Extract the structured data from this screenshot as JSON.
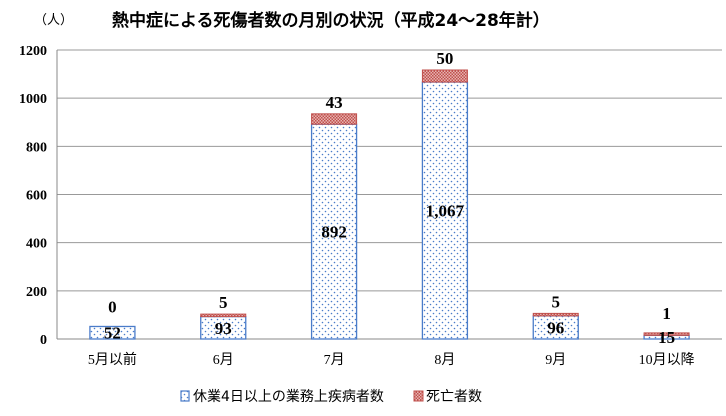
{
  "chart_data": {
    "type": "bar",
    "stacked": true,
    "title": "熱中症による死傷者数の月別の状況（平成24〜28年計）",
    "ylabel": "（人）",
    "xlabel": "",
    "ylim": [
      0,
      1200
    ],
    "yticks": [
      0,
      200,
      400,
      600,
      800,
      1000,
      1200
    ],
    "grid": true,
    "legend_position": "bottom",
    "categories": [
      "5月以前",
      "6月",
      "7月",
      "8月",
      "9月",
      "10月以降"
    ],
    "series": [
      {
        "name": "休業4日以上の業務上疾病者数",
        "values": [
          52,
          93,
          892,
          1067,
          96,
          15
        ],
        "labels": [
          "52",
          "93",
          "892",
          "1,067",
          "96",
          "15"
        ],
        "color": "#4a7cc9",
        "pattern": "dots"
      },
      {
        "name": "死亡者数",
        "values": [
          0,
          5,
          43,
          50,
          5,
          1
        ],
        "labels": [
          "0",
          "5",
          "43",
          "50",
          "5",
          "1"
        ],
        "color": "#c0504d",
        "pattern": "crosshatch"
      }
    ]
  }
}
